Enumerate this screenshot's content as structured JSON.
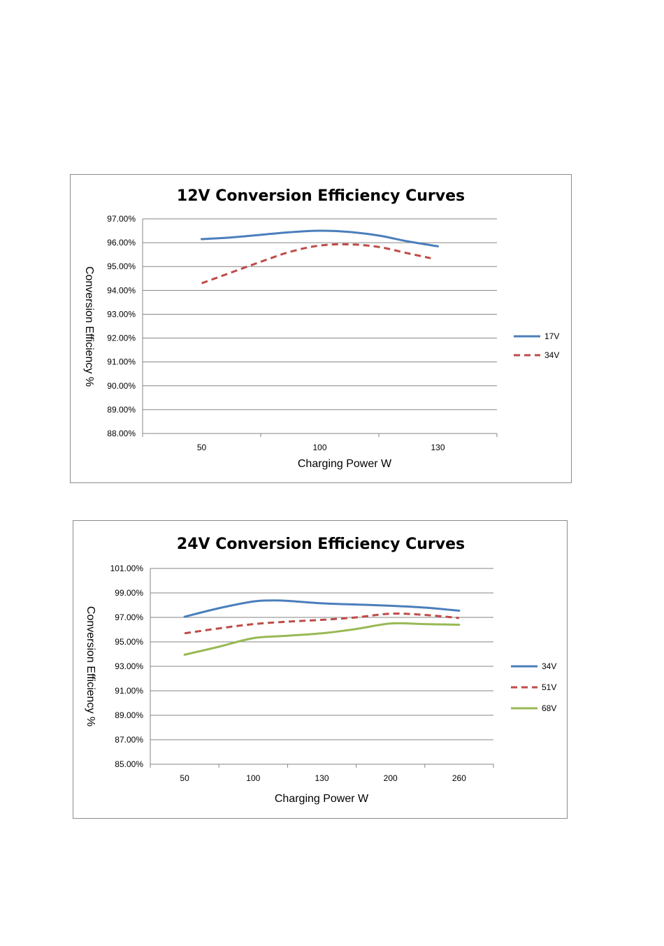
{
  "chart_data": [
    {
      "type": "line",
      "title": "12V Conversion Efficiency Curves",
      "xlabel": "Charging Power W",
      "ylabel": "Conversion Efficiency %",
      "categories": [
        "50",
        "100",
        "130"
      ],
      "ylim": [
        88,
        97
      ],
      "yticks": [
        "97.00%",
        "96.00%",
        "95.00%",
        "94.00%",
        "93.00%",
        "92.00%",
        "91.00%",
        "90.00%",
        "89.00%",
        "88.00%"
      ],
      "grid": true,
      "legend": "right",
      "series": [
        {
          "name": "17V",
          "color": "#4a7ebb",
          "dash": "solid",
          "x": [
            0,
            0.25,
            0.5,
            0.75,
            1,
            1.25,
            1.5,
            1.75,
            2
          ],
          "values": [
            96.15,
            96.22,
            96.33,
            96.44,
            96.5,
            96.45,
            96.3,
            96.05,
            95.85
          ]
        },
        {
          "name": "34V",
          "color": "#be4b48",
          "dash": "dashed",
          "x": [
            0,
            0.25,
            0.5,
            0.75,
            1,
            1.25,
            1.5,
            1.75,
            1.94
          ],
          "values": [
            94.3,
            94.75,
            95.2,
            95.62,
            95.88,
            95.93,
            95.82,
            95.55,
            95.35
          ]
        }
      ]
    },
    {
      "type": "line",
      "title": "24V Conversion Efficiency Curves",
      "xlabel": "Charging Power W",
      "ylabel": "Conversion Efficiency %",
      "categories": [
        "50",
        "100",
        "130",
        "200",
        "260"
      ],
      "ylim": [
        85,
        101
      ],
      "yticks": [
        "101.00%",
        "99.00%",
        "97.00%",
        "95.00%",
        "93.00%",
        "91.00%",
        "89.00%",
        "87.00%",
        "85.00%"
      ],
      "grid": true,
      "legend": "right",
      "series": [
        {
          "name": "34V",
          "color": "#4a7ebb",
          "dash": "solid",
          "x": [
            0,
            0.5,
            1,
            1.25,
            1.5,
            2,
            2.5,
            3,
            3.5,
            4
          ],
          "values": [
            97.05,
            97.75,
            98.3,
            98.38,
            98.35,
            98.15,
            98.05,
            97.95,
            97.8,
            97.55
          ]
        },
        {
          "name": "51V",
          "color": "#be4b48",
          "dash": "dashed",
          "x": [
            0,
            0.5,
            1,
            1.5,
            2,
            2.5,
            3,
            3.5,
            4
          ],
          "values": [
            95.7,
            96.1,
            96.45,
            96.65,
            96.8,
            97.0,
            97.3,
            97.2,
            96.95
          ]
        },
        {
          "name": "68V",
          "color": "#98b954",
          "dash": "solid",
          "x": [
            0,
            0.5,
            1,
            1.5,
            2,
            2.5,
            3,
            3.5,
            4
          ],
          "values": [
            93.95,
            94.6,
            95.3,
            95.5,
            95.7,
            96.05,
            96.5,
            96.45,
            96.4
          ]
        }
      ]
    }
  ]
}
